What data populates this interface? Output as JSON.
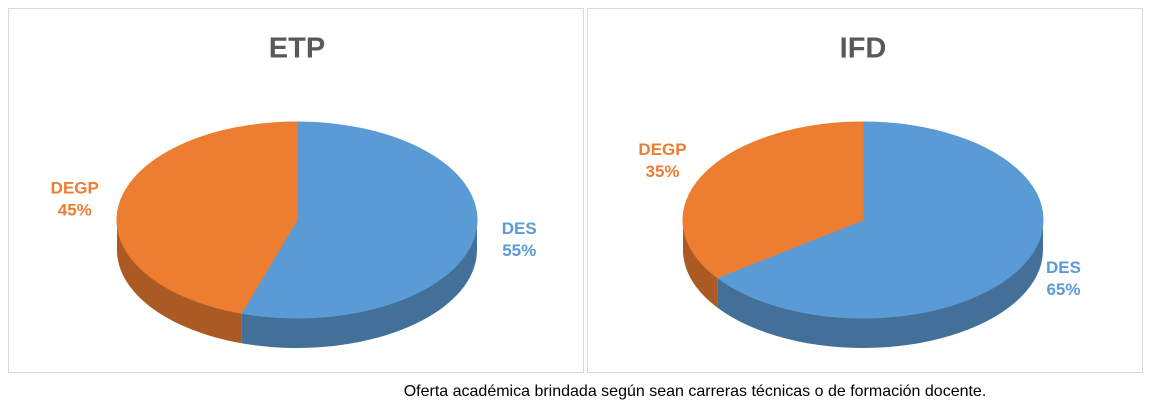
{
  "chart_data": [
    {
      "type": "pie",
      "title": "ETP",
      "categories": [
        "DES",
        "DEGP"
      ],
      "values": [
        55,
        45
      ],
      "value_labels": [
        "55%",
        "45%"
      ],
      "colors": [
        "#5b9bd5",
        "#ed7d31"
      ]
    },
    {
      "type": "pie",
      "title": "IFD",
      "categories": [
        "DES",
        "DEGP"
      ],
      "values": [
        65,
        35
      ],
      "value_labels": [
        "65%",
        "35%"
      ],
      "colors": [
        "#5b9bd5",
        "#ed7d31"
      ]
    }
  ],
  "caption": "Oferta académica brindada según sean carreras técnicas o de formación docente."
}
